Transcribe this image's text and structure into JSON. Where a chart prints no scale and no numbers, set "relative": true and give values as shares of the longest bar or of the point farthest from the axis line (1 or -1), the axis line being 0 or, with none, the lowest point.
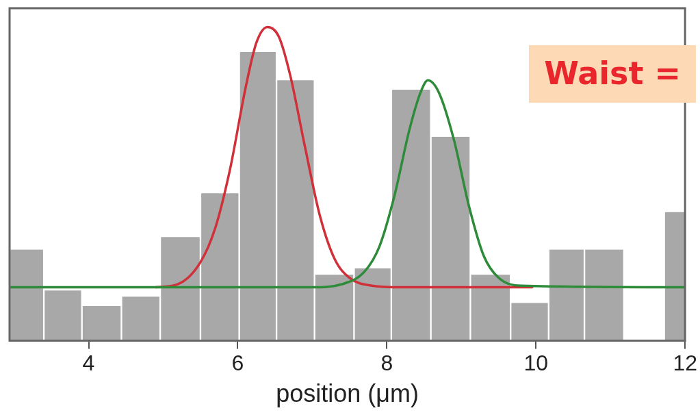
{
  "chart_data": {
    "type": "histogram",
    "relative": true,
    "xlabel": "position (μm)",
    "xlim": [
      2.94,
      12
    ],
    "xticks": [
      4,
      6,
      8,
      10,
      12
    ],
    "grid": false,
    "marker": "none",
    "annotations": [
      "Waist ="
    ],
    "color": "#a8a8a8",
    "bins": [
      2.94,
      3.4,
      3.91,
      4.44,
      4.96,
      5.5,
      6.02,
      6.52,
      7.03,
      7.56,
      8.06,
      8.59,
      9.12,
      9.66,
      10.17,
      10.65,
      11.18,
      11.72,
      12
    ],
    "values": [
      0.29,
      0.16,
      0.11,
      0.14,
      0.33,
      0.47,
      0.92,
      0.83,
      0.21,
      0.23,
      0.8,
      0.65,
      0.21,
      0.12,
      0.29,
      0.29,
      0,
      0.41
    ],
    "series": [
      {
        "type": "line",
        "color": "#2e8b3a",
        "x": [
          2.94,
          7.0,
          7.4,
          7.7,
          7.9,
          8.1,
          8.3,
          8.45,
          8.55,
          8.7,
          8.9,
          9.1,
          9.3,
          9.5,
          9.8,
          12
        ],
        "values": [
          0.17,
          0.17,
          0.18,
          0.22,
          0.3,
          0.46,
          0.67,
          0.79,
          0.83,
          0.79,
          0.64,
          0.43,
          0.27,
          0.2,
          0.175,
          0.17
        ]
      },
      {
        "type": "line",
        "color": "#d0303a",
        "x": [
          4.9,
          5.2,
          5.5,
          5.7,
          5.9,
          6.1,
          6.25,
          6.4,
          6.55,
          6.7,
          6.9,
          7.1,
          7.3,
          7.5,
          7.8,
          8.2,
          9.95
        ],
        "values": [
          0.17,
          0.18,
          0.25,
          0.36,
          0.55,
          0.8,
          0.95,
          1.0,
          0.97,
          0.85,
          0.62,
          0.4,
          0.26,
          0.2,
          0.175,
          0.17,
          0.17
        ]
      }
    ]
  }
}
